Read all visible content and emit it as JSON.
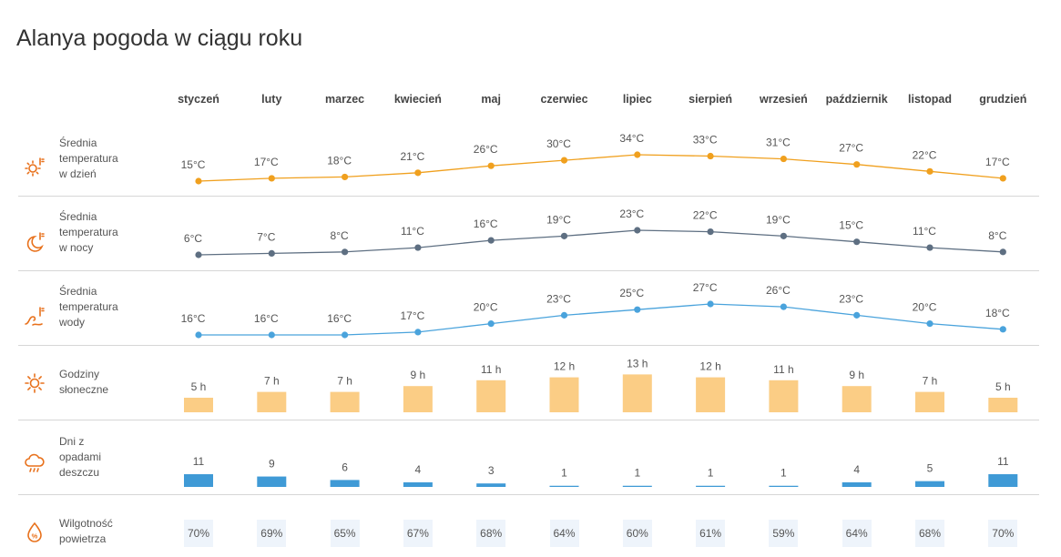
{
  "title": "Alanya pogoda w ciągu roku",
  "months": [
    "styczeń",
    "luty",
    "marzec",
    "kwiecień",
    "maj",
    "czerwiec",
    "lipiec",
    "sierpień",
    "wrzesień",
    "październik",
    "listopad",
    "grudzień"
  ],
  "rows": {
    "day_temp": {
      "label_lines": [
        "Średnia",
        "temperatura",
        "w dzień"
      ],
      "icon": "sun-thermometer-icon",
      "color": "#f0a01e"
    },
    "night_temp": {
      "label_lines": [
        "Średnia",
        "temperatura",
        "w nocy"
      ],
      "icon": "moon-thermometer-icon",
      "color": "#5e6f82"
    },
    "water_temp": {
      "label_lines": [
        "Średnia",
        "temperatura",
        "wody"
      ],
      "icon": "water-thermometer-icon",
      "color": "#4aa3dc"
    },
    "sun_hours": {
      "label_lines": [
        "Godziny",
        "słoneczne"
      ],
      "icon": "sun-icon",
      "color": "#fbcd85"
    },
    "rain_days": {
      "label_lines": [
        "Dni z",
        "opadami",
        "deszczu"
      ],
      "icon": "rain-cloud-icon",
      "color": "#3f9ad6"
    },
    "humidity": {
      "label_lines": [
        "Wilgotność",
        "powietrza"
      ],
      "icon": "humidity-drop-icon",
      "color": "#eef4fb"
    }
  },
  "chart_data": {
    "type": "table",
    "categories": [
      "styczeń",
      "luty",
      "marzec",
      "kwiecień",
      "maj",
      "czerwiec",
      "lipiec",
      "sierpień",
      "wrzesień",
      "październik",
      "listopad",
      "grudzień"
    ],
    "series": [
      {
        "name": "Średnia temperatura w dzień",
        "unit": "°C",
        "values": [
          15,
          17,
          18,
          21,
          26,
          30,
          34,
          33,
          31,
          27,
          22,
          17
        ]
      },
      {
        "name": "Średnia temperatura w nocy",
        "unit": "°C",
        "values": [
          6,
          7,
          8,
          11,
          16,
          19,
          23,
          22,
          19,
          15,
          11,
          8
        ]
      },
      {
        "name": "Średnia temperatura wody",
        "unit": "°C",
        "values": [
          16,
          16,
          16,
          17,
          20,
          23,
          25,
          27,
          26,
          23,
          20,
          18
        ]
      },
      {
        "name": "Godziny słoneczne",
        "unit": "h",
        "values": [
          5,
          7,
          7,
          9,
          11,
          12,
          13,
          12,
          11,
          9,
          7,
          5
        ]
      },
      {
        "name": "Dni z opadami deszczu",
        "unit": "",
        "values": [
          11,
          9,
          6,
          4,
          3,
          1,
          1,
          1,
          1,
          4,
          5,
          11
        ]
      },
      {
        "name": "Wilgotność powietrza",
        "unit": "%",
        "values": [
          70,
          69,
          65,
          67,
          68,
          64,
          60,
          61,
          59,
          64,
          68,
          70
        ]
      }
    ]
  }
}
